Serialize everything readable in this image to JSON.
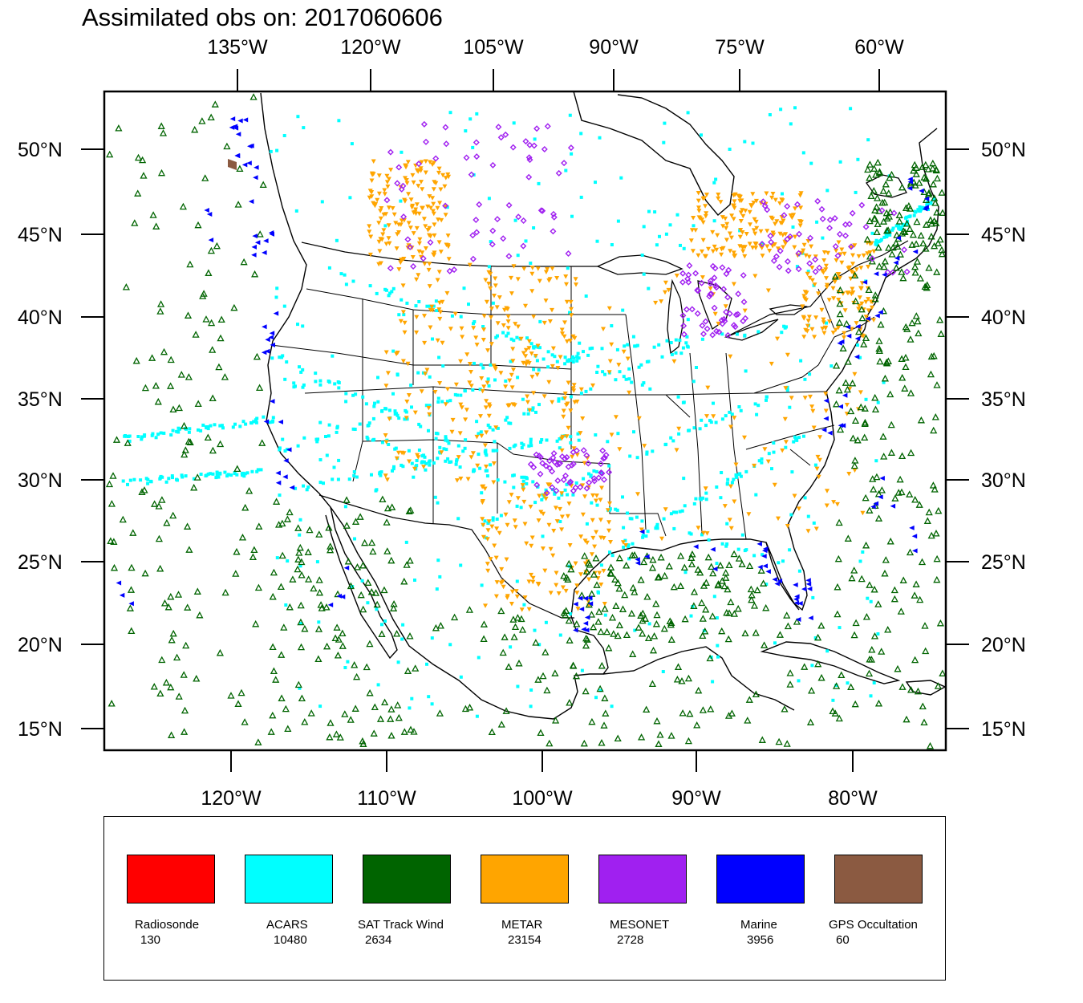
{
  "title": "Assimilated obs on: 2017060606",
  "top_axis_labels": [
    "135°W",
    "120°W",
    "105°W",
    "90°W",
    "75°W",
    "60°W"
  ],
  "bottom_axis_labels": [
    "120°W",
    "110°W",
    "100°W",
    "90°W",
    "80°W"
  ],
  "left_axis_labels": [
    "50°N",
    "45°N",
    "40°N",
    "35°N",
    "30°N",
    "25°N",
    "20°N",
    "15°N"
  ],
  "right_axis_labels": [
    "50°N",
    "45°N",
    "40°N",
    "35°N",
    "30°N",
    "25°N",
    "20°N",
    "15°N"
  ],
  "legend": [
    {
      "name": "Radiosonde",
      "count": "130",
      "color": "#ff0000"
    },
    {
      "name": "ACARS",
      "count": "10480",
      "color": "#00ffff"
    },
    {
      "name": "SAT Track Wind",
      "count": "2634",
      "color": "#006400"
    },
    {
      "name": "METAR",
      "count": "23154",
      "color": "#ffa500"
    },
    {
      "name": "MESONET",
      "count": "2728",
      "color": "#a020f0"
    },
    {
      "name": "Marine",
      "count": "3956",
      "color": "#0000ff"
    },
    {
      "name": "GPS Occultation",
      "count": "60",
      "color": "#8b5a41"
    }
  ],
  "colors": {
    "acars": "#00ffff",
    "sat_wind": "#006400",
    "metar": "#ffa500",
    "mesonet": "#a020f0",
    "marine": "#0000ff",
    "gps": "#8b5a41",
    "coast": "#000000"
  }
}
